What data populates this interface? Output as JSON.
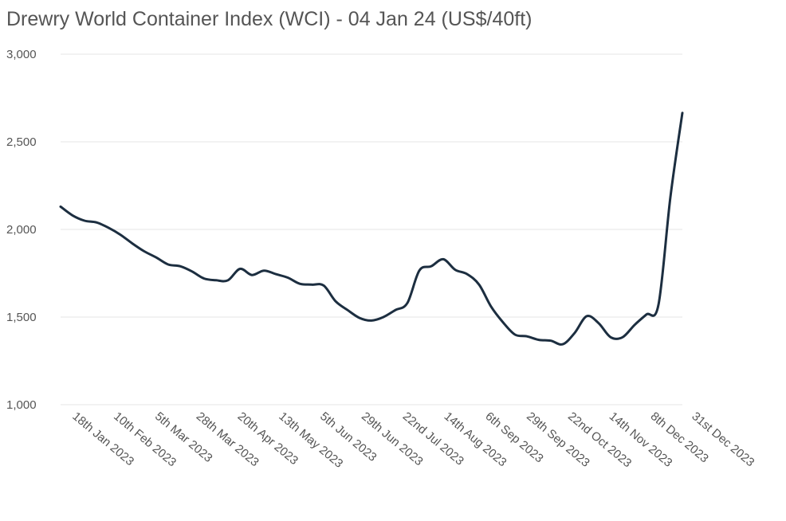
{
  "chart_data": {
    "type": "line",
    "title": "Drewry World Container Index (WCI) - 04 Jan 24 (US$/40ft)",
    "xlabel": "",
    "ylabel": "",
    "ylim": [
      1000,
      3000
    ],
    "y_ticks": [
      "3,000",
      "2,500",
      "2,000",
      "1,500",
      "1,000"
    ],
    "y_tick_values": [
      3000,
      2500,
      2000,
      1500,
      1000
    ],
    "grid": true,
    "x_tick_labels": [
      "18th Jan 2023",
      "10th Feb 2023",
      "5th Mar 2023",
      "28th Mar 2023",
      "20th Apr 2023",
      "13th May 2023",
      "5th Jun 2023",
      "29th Jun 2023",
      "22nd Jul 2023",
      "14th Aug 2023",
      "6th Sep 2023",
      "29th Sep 2023",
      "22nd Oct 2023",
      "14th Nov 2023",
      "8th Dec 2023",
      "31st Dec 2023"
    ],
    "series": [
      {
        "color": "#1c2e40",
        "points": [
          [
            "2023-01-05",
            2130
          ],
          [
            "2023-01-12",
            2080
          ],
          [
            "2023-01-19",
            2050
          ],
          [
            "2023-01-26",
            2040
          ],
          [
            "2023-02-02",
            2010
          ],
          [
            "2023-02-09",
            1970
          ],
          [
            "2023-02-16",
            1920
          ],
          [
            "2023-02-23",
            1875
          ],
          [
            "2023-03-02",
            1840
          ],
          [
            "2023-03-09",
            1800
          ],
          [
            "2023-03-16",
            1790
          ],
          [
            "2023-03-23",
            1760
          ],
          [
            "2023-03-30",
            1720
          ],
          [
            "2023-04-06",
            1710
          ],
          [
            "2023-04-13",
            1710
          ],
          [
            "2023-04-20",
            1775
          ],
          [
            "2023-04-27",
            1740
          ],
          [
            "2023-05-04",
            1765
          ],
          [
            "2023-05-11",
            1745
          ],
          [
            "2023-05-18",
            1725
          ],
          [
            "2023-05-25",
            1690
          ],
          [
            "2023-06-01",
            1685
          ],
          [
            "2023-06-08",
            1680
          ],
          [
            "2023-06-15",
            1590
          ],
          [
            "2023-06-22",
            1540
          ],
          [
            "2023-06-29",
            1495
          ],
          [
            "2023-07-06",
            1480
          ],
          [
            "2023-07-13",
            1500
          ],
          [
            "2023-07-20",
            1540
          ],
          [
            "2023-07-27",
            1580
          ],
          [
            "2023-08-03",
            1765
          ],
          [
            "2023-08-10",
            1790
          ],
          [
            "2023-08-17",
            1830
          ],
          [
            "2023-08-24",
            1770
          ],
          [
            "2023-08-31",
            1745
          ],
          [
            "2023-09-07",
            1685
          ],
          [
            "2023-09-14",
            1560
          ],
          [
            "2023-09-21",
            1470
          ],
          [
            "2023-09-28",
            1400
          ],
          [
            "2023-10-05",
            1390
          ],
          [
            "2023-10-12",
            1370
          ],
          [
            "2023-10-19",
            1365
          ],
          [
            "2023-10-26",
            1345
          ],
          [
            "2023-11-02",
            1410
          ],
          [
            "2023-11-09",
            1505
          ],
          [
            "2023-11-16",
            1465
          ],
          [
            "2023-11-23",
            1385
          ],
          [
            "2023-11-30",
            1385
          ],
          [
            "2023-12-07",
            1455
          ],
          [
            "2023-12-14",
            1515
          ],
          [
            "2023-12-21",
            1570
          ],
          [
            "2023-12-28",
            2185
          ],
          [
            "2024-01-04",
            2665
          ]
        ]
      }
    ]
  }
}
